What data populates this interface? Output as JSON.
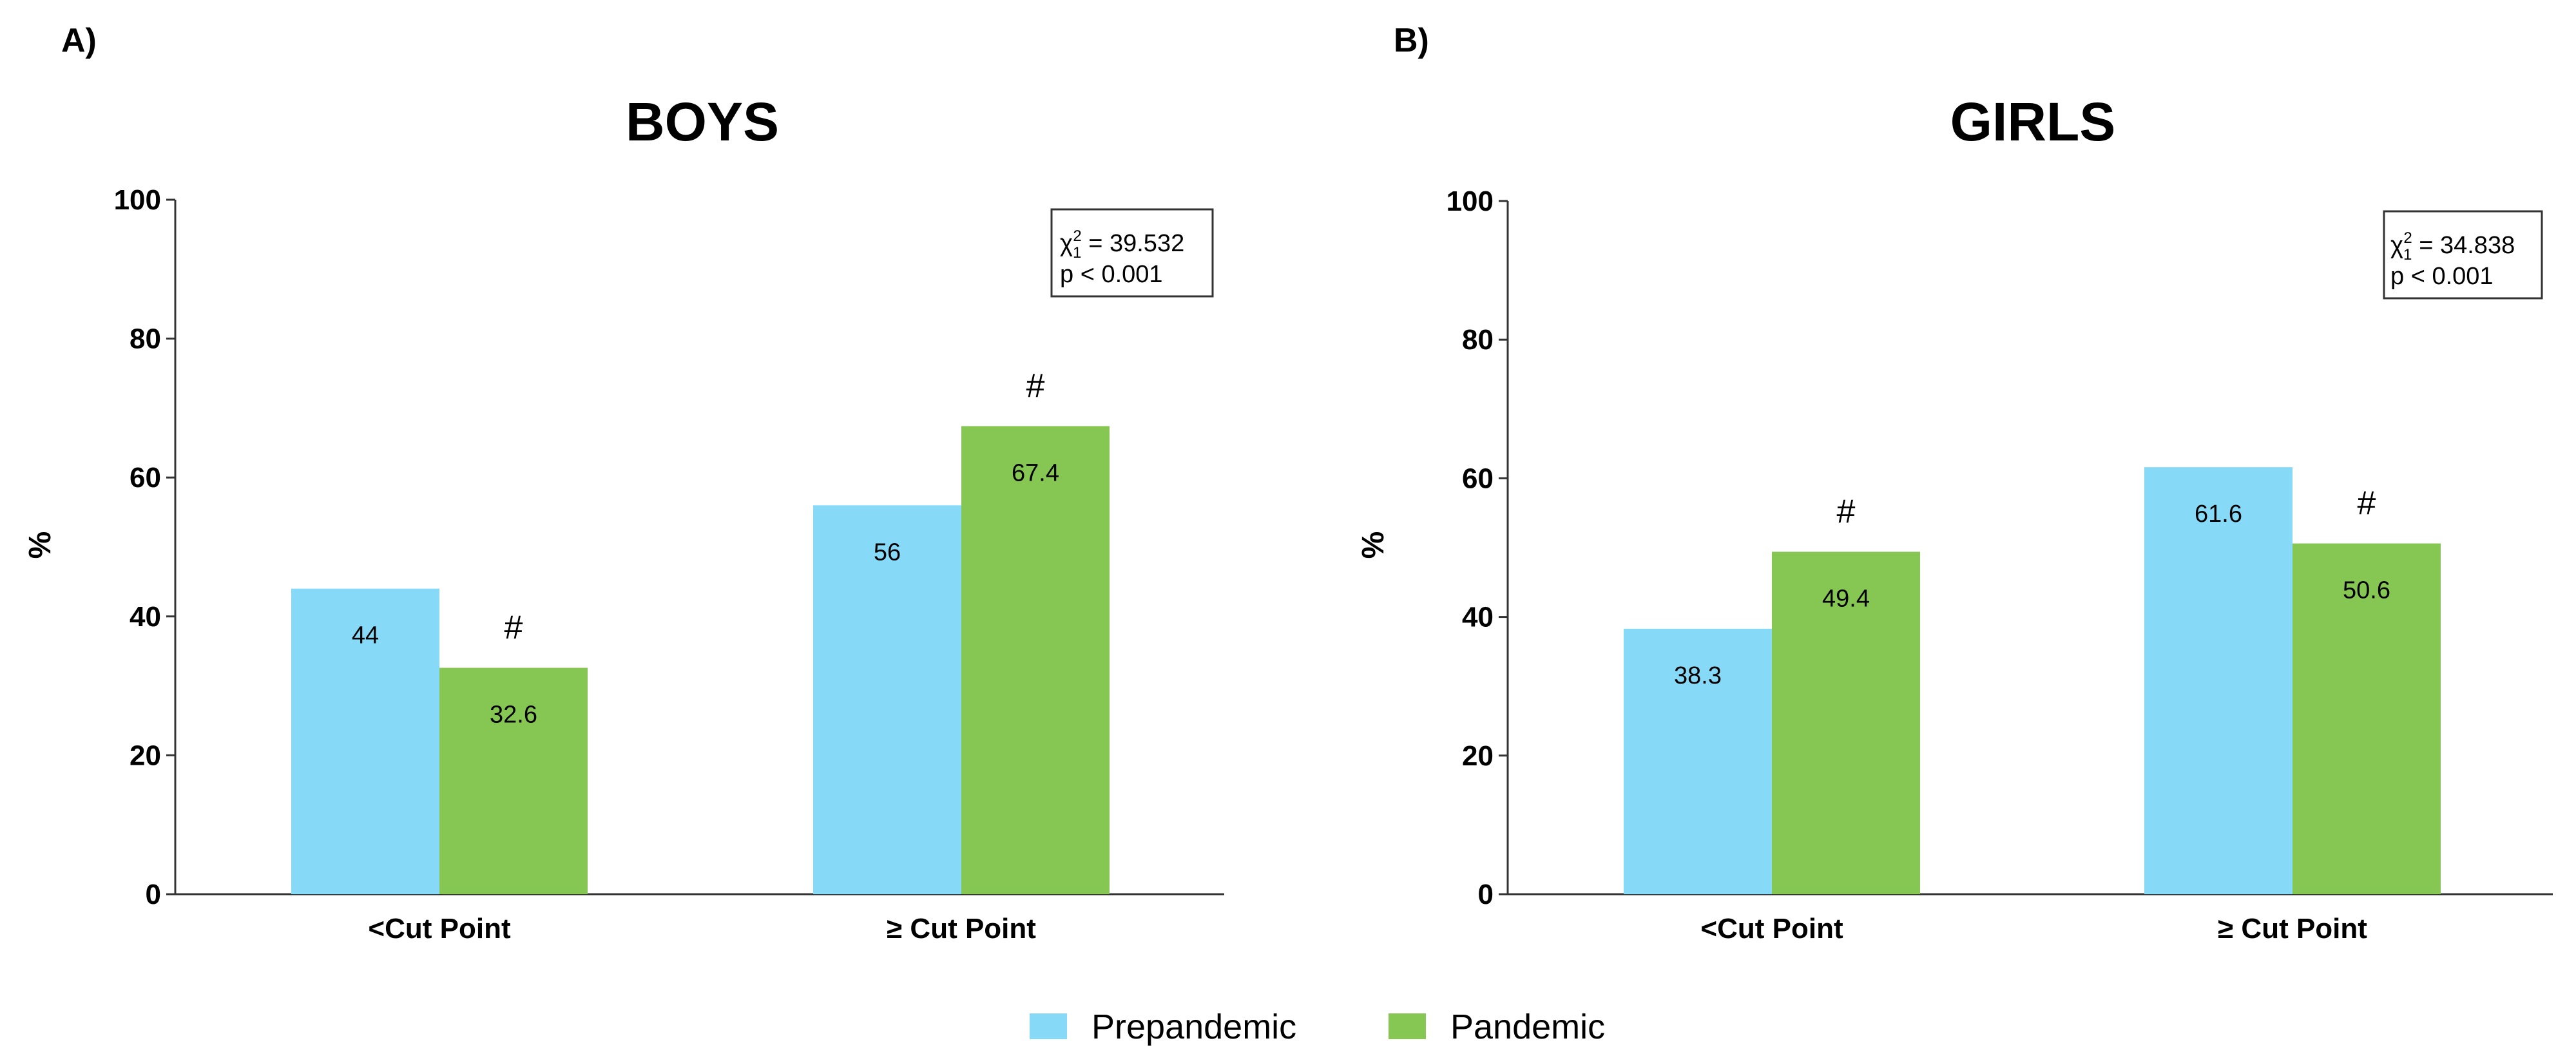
{
  "colors": {
    "prepandemic": "#87DAF7",
    "pandemic": "#85C752"
  },
  "legend": [
    {
      "name": "Prepandemic",
      "color_key": "prepandemic"
    },
    {
      "name": "Pandemic",
      "color_key": "pandemic"
    }
  ],
  "chart_data": [
    {
      "type": "bar",
      "panel_label": "A)",
      "title": "BOYS",
      "xlabel": "",
      "ylabel": "%",
      "ylim": [
        0,
        100
      ],
      "yticks": [
        0,
        20,
        40,
        60,
        80,
        100
      ],
      "categories": [
        "<Cut Point",
        "≥ Cut Point"
      ],
      "series": [
        {
          "name": "Prepandemic",
          "values": [
            44,
            56
          ],
          "labels": [
            "44",
            "56"
          ],
          "marker": [
            "",
            ""
          ]
        },
        {
          "name": "Pandemic",
          "values": [
            32.6,
            67.4
          ],
          "labels": [
            "32.6",
            "67.4"
          ],
          "marker": [
            "#",
            "#"
          ]
        }
      ],
      "stat": {
        "chi_symbol": "χ",
        "sub": "1",
        "sup": "2",
        "chi_text": " = 39.532",
        "p_text": "p < 0.001"
      },
      "legend_position": "bottom-center"
    },
    {
      "type": "bar",
      "panel_label": "B)",
      "title": "GIRLS",
      "xlabel": "",
      "ylabel": "%",
      "ylim": [
        0,
        100
      ],
      "yticks": [
        0,
        20,
        40,
        60,
        80,
        100
      ],
      "categories": [
        "<Cut Point",
        "≥ Cut Point"
      ],
      "series": [
        {
          "name": "Prepandemic",
          "values": [
            38.3,
            61.6
          ],
          "labels": [
            "38.3",
            "61.6"
          ],
          "marker": [
            "",
            ""
          ]
        },
        {
          "name": "Pandemic",
          "values": [
            49.4,
            50.6
          ],
          "labels": [
            "49.4",
            "50.6"
          ],
          "marker": [
            "#",
            "#"
          ]
        }
      ],
      "stat": {
        "chi_symbol": "χ",
        "sub": "1",
        "sup": "2",
        "chi_text": " = 34.838",
        "p_text": "p < 0.001"
      },
      "legend_position": "bottom-center"
    }
  ]
}
